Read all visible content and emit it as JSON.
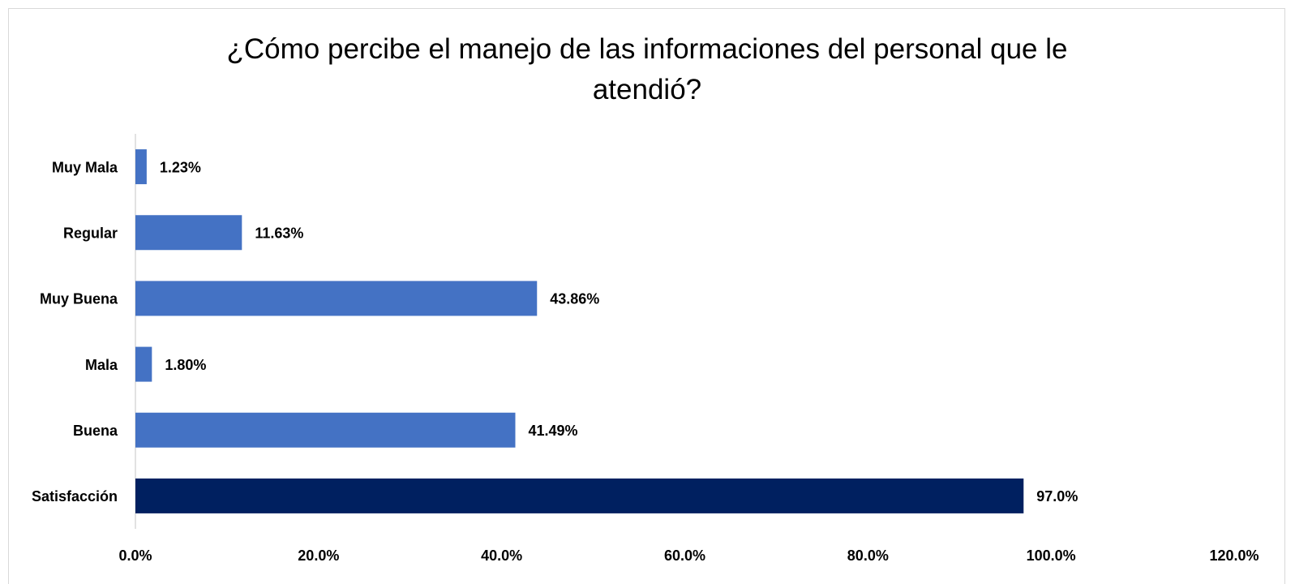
{
  "chart_data": {
    "type": "barh",
    "title": "¿Cómo percibe el manejo de las informaciones del personal que le atendió?",
    "categories": [
      "Muy Mala",
      "Regular",
      "Muy Buena",
      "Mala",
      "Buena",
      "Satisfacción"
    ],
    "values": [
      1.23,
      11.63,
      43.86,
      1.8,
      41.49,
      97.0
    ],
    "value_labels": [
      "1.23%",
      "11.63%",
      "43.86%",
      "1.80%",
      "41.49%",
      "97.0%"
    ],
    "colors": [
      "#4472c4",
      "#4472c4",
      "#4472c4",
      "#4472c4",
      "#4472c4",
      "#002060"
    ],
    "xlim": [
      0,
      120
    ],
    "xticks": [
      {
        "value": 0,
        "label": "0.0%"
      },
      {
        "value": 20,
        "label": "20.0%"
      },
      {
        "value": 40,
        "label": "40.0%"
      },
      {
        "value": 60,
        "label": "60.0%"
      },
      {
        "value": 80,
        "label": "80.0%"
      },
      {
        "value": 100,
        "label": "100.0%"
      },
      {
        "value": 120,
        "label": "120.0%"
      }
    ],
    "grid": false
  }
}
